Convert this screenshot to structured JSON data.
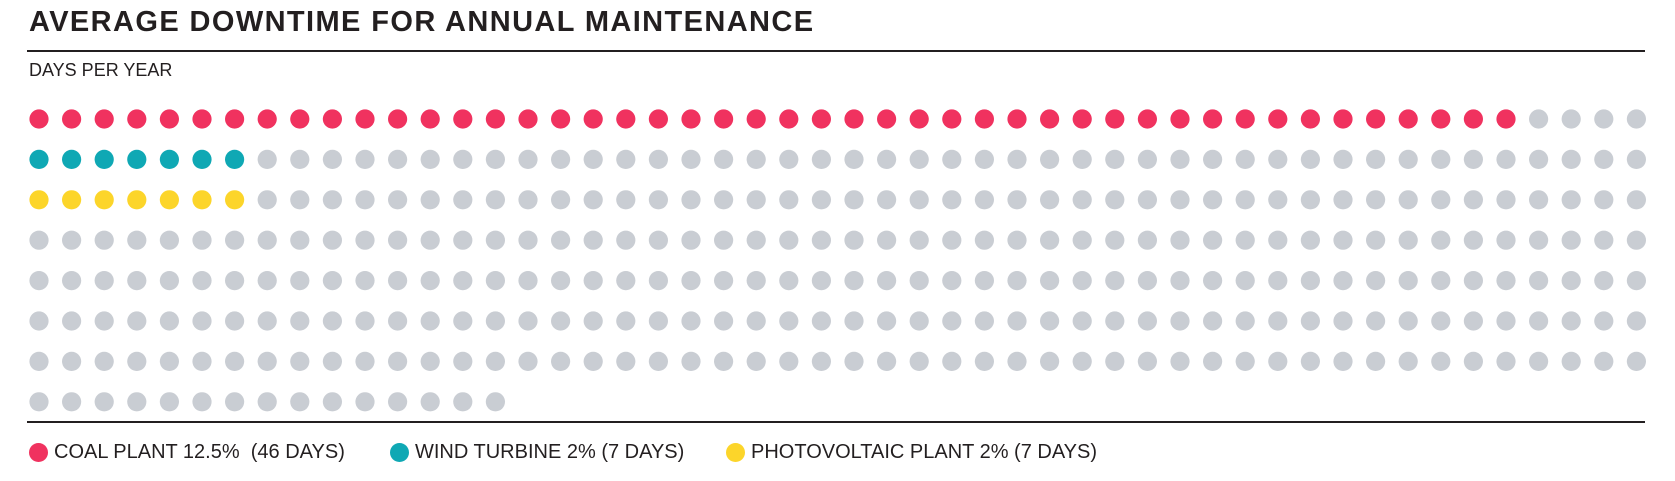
{
  "chart_data": {
    "type": "dot-matrix",
    "title": "AVERAGE DOWNTIME FOR ANNUAL MAINTENANCE",
    "subtitle": "DAYS PER YEAR",
    "total_days": 365,
    "days_per_row": 50,
    "series": [
      {
        "label": "COAL PLANT 12.5%  (46 DAYS)",
        "days": 46,
        "color": "#f0325f"
      },
      {
        "label": "WIND TURBINE 2% (7 DAYS)",
        "days": 7,
        "color": "#0fa8b4"
      },
      {
        "label": "PHOTOVOLTAIC PLANT 2% (7 DAYS)",
        "days": 7,
        "color": "#fcd52a"
      }
    ],
    "empty_color": "#c9cdd3"
  }
}
